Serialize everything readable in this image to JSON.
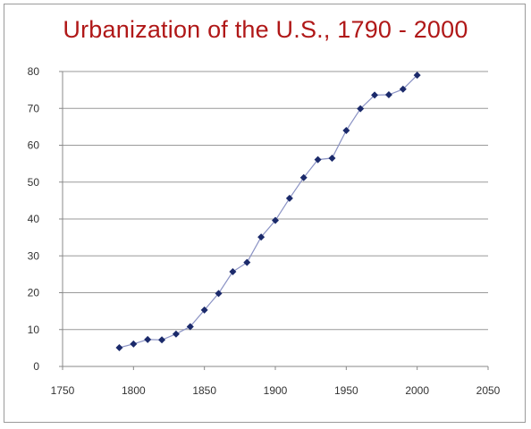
{
  "chart_data": {
    "type": "line",
    "title": "Urbanization of the U.S., 1790 - 2000",
    "xlabel": "",
    "ylabel": "",
    "xlim": [
      1750,
      2050
    ],
    "ylim": [
      0,
      80
    ],
    "x_ticks": [
      1750,
      1800,
      1850,
      1900,
      1950,
      2000,
      2050
    ],
    "y_ticks": [
      0,
      10,
      20,
      30,
      40,
      50,
      60,
      70,
      80
    ],
    "grid": "horizontal",
    "legend": "none",
    "colors": {
      "line": "#8a92c4",
      "marker": "#1b2a6b",
      "title": "#b01818"
    },
    "series": [
      {
        "x": [
          1790,
          1800,
          1810,
          1820,
          1830,
          1840,
          1850,
          1860,
          1870,
          1880,
          1890,
          1900,
          1910,
          1920,
          1930,
          1940,
          1950,
          1960,
          1970,
          1980,
          1990,
          2000
        ],
        "values": [
          5.1,
          6.1,
          7.3,
          7.2,
          8.8,
          10.8,
          15.3,
          19.8,
          25.7,
          28.2,
          35.1,
          39.6,
          45.6,
          51.2,
          56.1,
          56.5,
          64.0,
          69.9,
          73.6,
          73.7,
          75.2,
          79.0
        ]
      }
    ]
  }
}
